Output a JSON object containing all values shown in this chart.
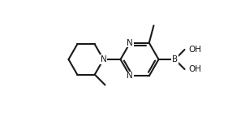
{
  "bg_color": "#ffffff",
  "line_color": "#1a1a1a",
  "text_color": "#1a1a1a",
  "line_width": 1.5,
  "font_size": 7.5,
  "figsize": [
    2.81,
    1.45
  ],
  "dpi": 100,
  "xlim": [
    0,
    2.81
  ],
  "ylim": [
    0,
    1.45
  ]
}
